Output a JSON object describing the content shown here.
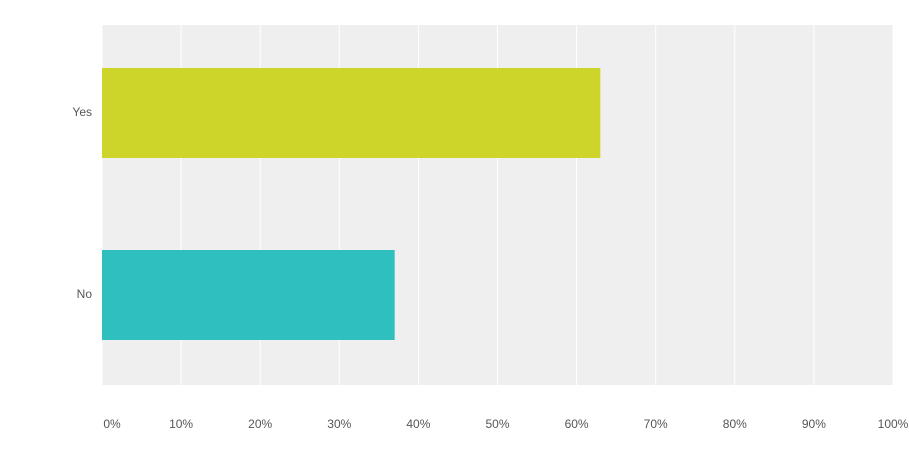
{
  "chart_data": {
    "type": "bar",
    "orientation": "horizontal",
    "categories": [
      "Yes",
      "No"
    ],
    "values": [
      63,
      37
    ],
    "colors": [
      "#cdd42a",
      "#2fbfbf"
    ],
    "xlim": [
      0,
      100
    ],
    "xticks": [
      {
        "value": 0,
        "label": "0%"
      },
      {
        "value": 10,
        "label": "10%"
      },
      {
        "value": 20,
        "label": "20%"
      },
      {
        "value": 30,
        "label": "30%"
      },
      {
        "value": 40,
        "label": "40%"
      },
      {
        "value": 50,
        "label": "50%"
      },
      {
        "value": 60,
        "label": "60%"
      },
      {
        "value": 70,
        "label": "70%"
      },
      {
        "value": 80,
        "label": "80%"
      },
      {
        "value": 90,
        "label": "90%"
      },
      {
        "value": 100,
        "label": "100%"
      }
    ],
    "grid": true
  }
}
